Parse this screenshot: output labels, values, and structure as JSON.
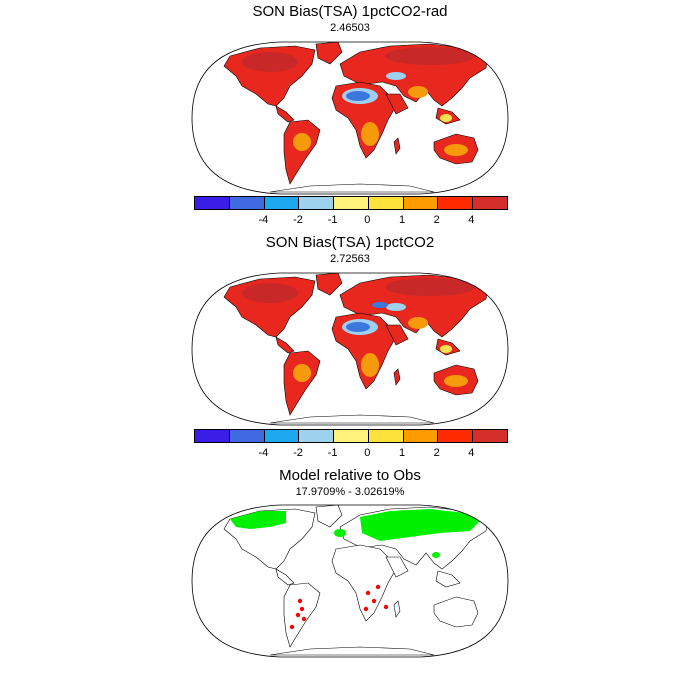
{
  "panels": [
    {
      "title": "SON Bias(TSA) 1pctCO2-rad",
      "subtitle": "2.46503"
    },
    {
      "title": "SON Bias(TSA) 1pctCO2",
      "subtitle": "2.72563"
    },
    {
      "title": "Model relative to Obs",
      "subtitle": "17.9709% - 3.02619%"
    }
  ],
  "colorbar": {
    "colors": [
      "#3a1ee8",
      "#4169e1",
      "#1ea8f0",
      "#9dd2ef",
      "#fff27a",
      "#fde23c",
      "#fe9a02",
      "#fd2a00",
      "#d62e2a"
    ],
    "labels": [
      "-4",
      "-2",
      "-1",
      "0",
      "1",
      "2",
      "4"
    ]
  },
  "map_colors": {
    "land_warm": "#e8281e",
    "land_hot": "#c82828",
    "land_orange": "#f59a0a",
    "land_yellow": "#f5e050",
    "desert_cool": "#3c78dc",
    "desert_light": "#9ed0f0",
    "rel_green": "#00f000",
    "rel_red": "#ff0000"
  }
}
